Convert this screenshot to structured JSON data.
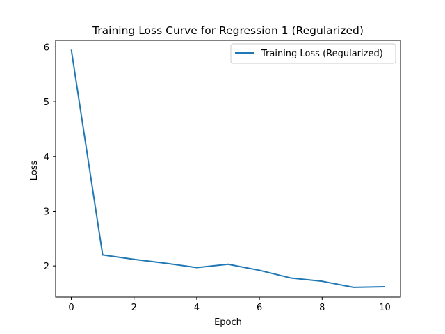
{
  "chart_data": {
    "type": "line",
    "title": "Training Loss Curve for Regression 1 (Regularized)",
    "xlabel": "Epoch",
    "ylabel": "Loss",
    "xlim": [
      -0.5,
      10.5
    ],
    "ylim": [
      1.43,
      6.12
    ],
    "xticks": [
      0,
      2,
      4,
      6,
      8,
      10
    ],
    "yticks": [
      2,
      3,
      4,
      5,
      6
    ],
    "grid": false,
    "legend_position": "top-right",
    "series": [
      {
        "name": "Training Loss (Regularized)",
        "color": "#1f77b4",
        "x": [
          0,
          1,
          2,
          3,
          4,
          5,
          6,
          7,
          8,
          9,
          10
        ],
        "y": [
          5.95,
          2.2,
          2.12,
          2.05,
          1.97,
          2.03,
          1.92,
          1.78,
          1.72,
          1.61,
          1.62
        ]
      }
    ]
  }
}
